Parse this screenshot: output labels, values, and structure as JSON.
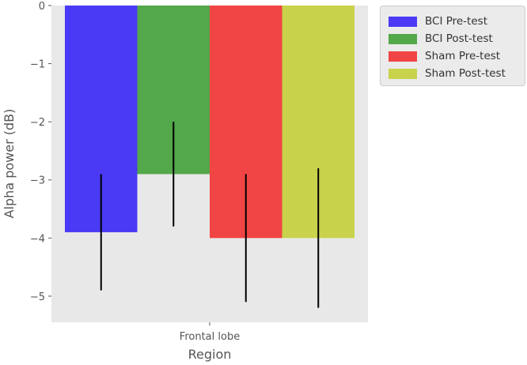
{
  "chart_data": {
    "type": "bar",
    "categories": [
      "Frontal lobe"
    ],
    "series": [
      {
        "name": "BCI Pre-test",
        "values": [
          -3.9
        ],
        "error": [
          [
            -4.9,
            -2.9
          ]
        ],
        "color": "#4a3af5"
      },
      {
        "name": "BCI Post-test",
        "values": [
          -2.9
        ],
        "error": [
          [
            -3.8,
            -2.0
          ]
        ],
        "color": "#53a84a"
      },
      {
        "name": "Sham Pre-test",
        "values": [
          -4.0
        ],
        "error": [
          [
            -5.1,
            -2.9
          ]
        ],
        "color": "#f14444"
      },
      {
        "name": "Sham Post-test",
        "values": [
          -4.0
        ],
        "error": [
          [
            -5.2,
            -2.8
          ]
        ],
        "color": "#c8d24a"
      }
    ],
    "xlabel": "Region",
    "ylabel": "Alpha power (dB)",
    "ylim": [
      -5.45,
      0
    ],
    "yticks": [
      0,
      -1,
      -2,
      -3,
      -4,
      -5
    ],
    "ytick_labels": [
      "0",
      "−1",
      "−2",
      "−3",
      "−4",
      "−5"
    ],
    "grid": false,
    "legend": "outside-top-right",
    "background": "#e8e8e8"
  }
}
